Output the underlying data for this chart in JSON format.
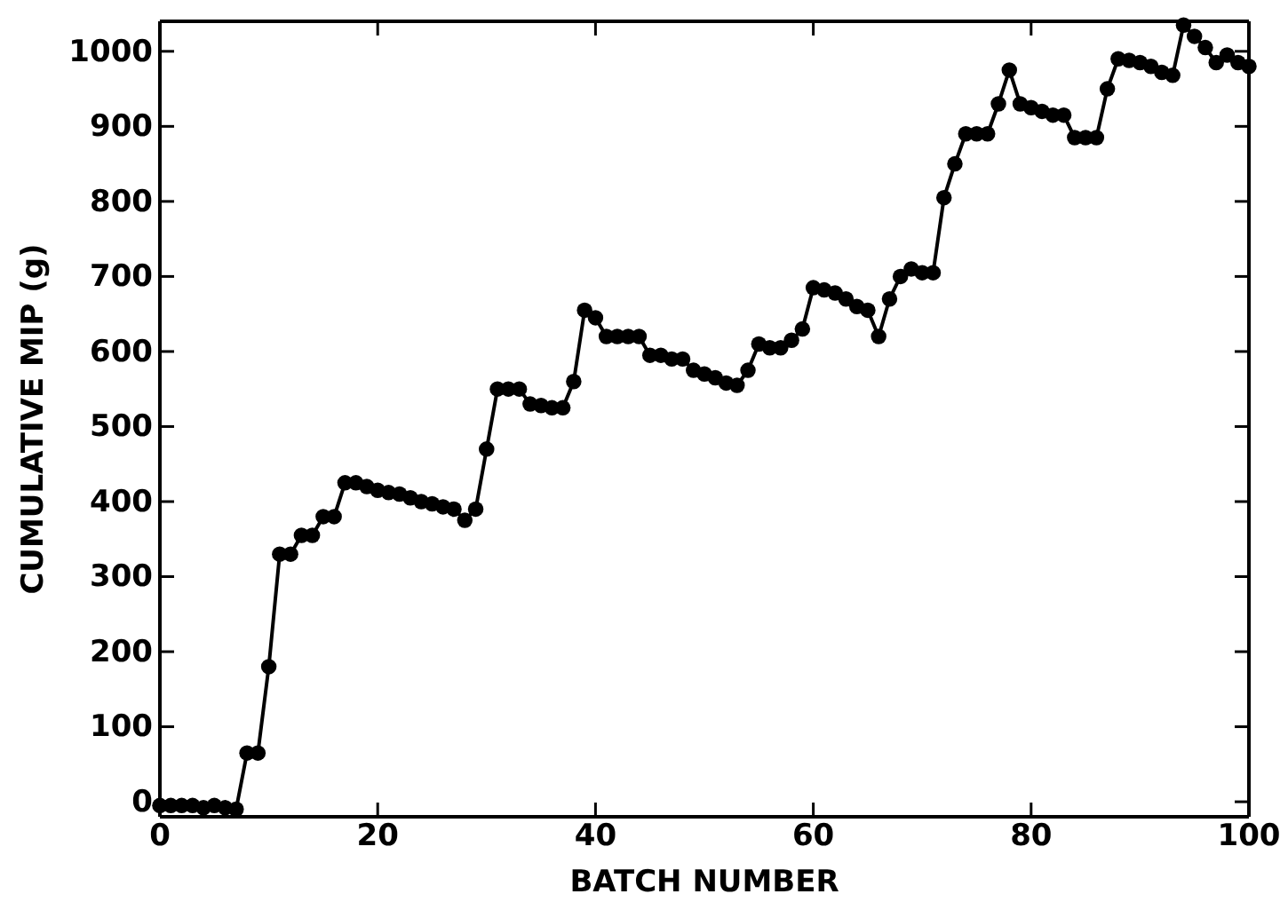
{
  "chart_data": {
    "type": "line",
    "xlabel": "BATCH NUMBER",
    "ylabel": "CUMULATIVE MIP (g)",
    "marker": "circle",
    "line_style": "solid",
    "grid": false,
    "xlim": [
      0,
      100
    ],
    "ylim": [
      -20,
      1040
    ],
    "xticks": [
      0,
      20,
      40,
      60,
      80,
      100
    ],
    "yticks": [
      0,
      100,
      200,
      300,
      400,
      500,
      600,
      700,
      800,
      900,
      1000
    ],
    "x": [
      0,
      1,
      2,
      3,
      4,
      5,
      6,
      7,
      8,
      9,
      10,
      11,
      12,
      13,
      14,
      15,
      16,
      17,
      18,
      19,
      20,
      21,
      22,
      23,
      24,
      25,
      26,
      27,
      28,
      29,
      30,
      31,
      32,
      33,
      34,
      35,
      36,
      37,
      38,
      39,
      40,
      41,
      42,
      43,
      44,
      45,
      46,
      47,
      48,
      49,
      50,
      51,
      52,
      53,
      54,
      55,
      56,
      57,
      58,
      59,
      60,
      61,
      62,
      63,
      64,
      65,
      66,
      67,
      68,
      69,
      70,
      71,
      72,
      73,
      74,
      75,
      76,
      77,
      78,
      79,
      80,
      81,
      82,
      83,
      84,
      85,
      86,
      87,
      88,
      89,
      90,
      91,
      92,
      93,
      94,
      95,
      96,
      97,
      98,
      99,
      100
    ],
    "series": [
      {
        "color": "#000000",
        "values": [
          -5,
          -5,
          -5,
          -5,
          -8,
          -5,
          -8,
          -10,
          65,
          65,
          180,
          330,
          330,
          355,
          355,
          380,
          380,
          425,
          425,
          420,
          415,
          412,
          410,
          405,
          400,
          397,
          393,
          390,
          375,
          390,
          470,
          550,
          550,
          550,
          530,
          528,
          525,
          525,
          560,
          655,
          645,
          620,
          620,
          620,
          620,
          595,
          595,
          590,
          590,
          575,
          570,
          565,
          558,
          555,
          575,
          610,
          605,
          605,
          615,
          630,
          685,
          682,
          678,
          670,
          660,
          655,
          620,
          670,
          700,
          710,
          705,
          705,
          805,
          850,
          890,
          890,
          890,
          930,
          975,
          930,
          925,
          920,
          915,
          915,
          885,
          885,
          885,
          950,
          990,
          988,
          985,
          980,
          972,
          968,
          1035,
          1020,
          1005,
          985,
          995,
          985,
          980
        ]
      }
    ]
  }
}
